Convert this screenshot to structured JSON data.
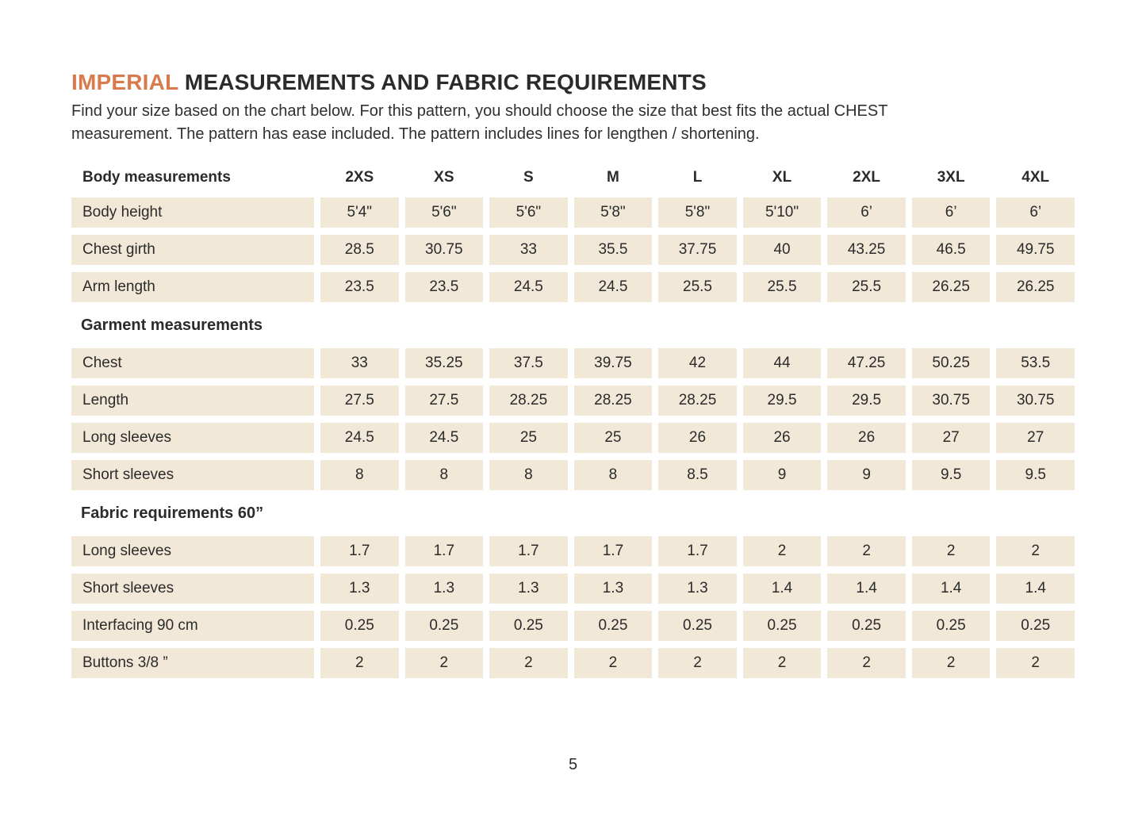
{
  "colors": {
    "accent_orange": "#d97a4c",
    "cell_background": "#f1e8d8",
    "text": "#2b2b2b"
  },
  "header": {
    "title_highlight": "IMPERIAL",
    "title_rest": " MEASUREMENTS AND FABRIC REQUIREMENTS",
    "intro_lines": [
      "Find your size based on the chart below. For this pattern, you should choose the size that best fits the actual CHEST",
      "measurement. The pattern has ease included. The pattern includes lines for lengthen / shortening."
    ]
  },
  "table": {
    "sizes": [
      "2XS",
      "XS",
      "S",
      "M",
      "L",
      "XL",
      "2XL",
      "3XL",
      "4XL"
    ],
    "sections": [
      {
        "header": "Body measurements",
        "rows": [
          {
            "label": "Body height",
            "values": [
              "5'4\"",
              "5'6\"",
              "5'6\"",
              "5'8\"",
              "5'8\"",
              "5'10\"",
              "6’",
              "6’",
              "6’"
            ]
          },
          {
            "label": "Chest girth",
            "values": [
              "28.5",
              "30.75",
              "33",
              "35.5",
              "37.75",
              "40",
              "43.25",
              "46.5",
              "49.75"
            ]
          },
          {
            "label": "Arm length",
            "values": [
              "23.5",
              "23.5",
              "24.5",
              "24.5",
              "25.5",
              "25.5",
              "25.5",
              "26.25",
              "26.25"
            ]
          }
        ]
      },
      {
        "header": "Garment measurements",
        "rows": [
          {
            "label": "Chest",
            "values": [
              "33",
              "35.25",
              "37.5",
              "39.75",
              "42",
              "44",
              "47.25",
              "50.25",
              "53.5"
            ]
          },
          {
            "label": "Length",
            "values": [
              "27.5",
              "27.5",
              "28.25",
              "28.25",
              "28.25",
              "29.5",
              "29.5",
              "30.75",
              "30.75"
            ]
          },
          {
            "label": "Long sleeves",
            "values": [
              "24.5",
              "24.5",
              "25",
              "25",
              "26",
              "26",
              "26",
              "27",
              "27"
            ]
          },
          {
            "label": "Short sleeves",
            "values": [
              "8",
              "8",
              "8",
              "8",
              "8.5",
              "9",
              "9",
              "9.5",
              "9.5"
            ]
          }
        ]
      },
      {
        "header": "Fabric requirements 60”",
        "rows": [
          {
            "label": "Long sleeves",
            "values": [
              "1.7",
              "1.7",
              "1.7",
              "1.7",
              "1.7",
              "2",
              "2",
              "2",
              "2"
            ]
          },
          {
            "label": "Short sleeves",
            "values": [
              "1.3",
              "1.3",
              "1.3",
              "1.3",
              "1.3",
              "1.4",
              "1.4",
              "1.4",
              "1.4"
            ]
          },
          {
            "label": "Interfacing 90 cm",
            "values": [
              "0.25",
              "0.25",
              "0.25",
              "0.25",
              "0.25",
              "0.25",
              "0.25",
              "0.25",
              "0.25"
            ]
          },
          {
            "label": "Buttons 3/8 ”",
            "values": [
              "2",
              "2",
              "2",
              "2",
              "2",
              "2",
              "2",
              "2",
              "2"
            ]
          }
        ]
      }
    ]
  },
  "footer": {
    "page_number": "5"
  }
}
